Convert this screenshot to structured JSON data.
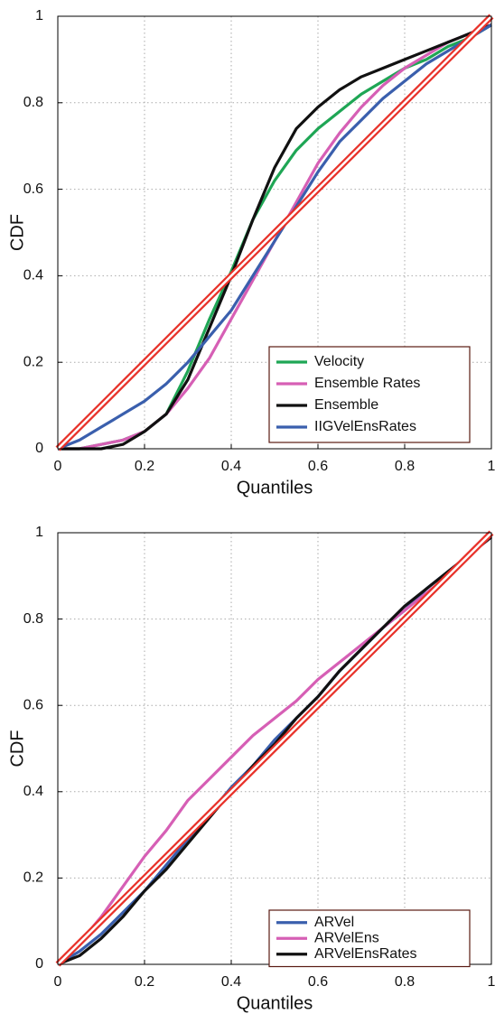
{
  "chart_data": [
    {
      "type": "line",
      "xlabel": "Quantiles",
      "ylabel": "CDF",
      "xlim": [
        0,
        1
      ],
      "ylim": [
        0,
        1
      ],
      "xticks": [
        0,
        0.2,
        0.4,
        0.6,
        0.8,
        1
      ],
      "yticks": [
        0,
        0.2,
        0.4,
        0.6,
        0.8,
        1
      ],
      "grid": true,
      "legend": "lower right",
      "x": [
        0,
        0.05,
        0.1,
        0.15,
        0.2,
        0.25,
        0.3,
        0.35,
        0.4,
        0.45,
        0.5,
        0.55,
        0.6,
        0.65,
        0.7,
        0.75,
        0.8,
        0.85,
        0.9,
        0.95,
        1
      ],
      "reference": {
        "x": [
          0,
          1
        ],
        "values": [
          0,
          1
        ],
        "color": "#e8322a"
      },
      "series": [
        {
          "name": "Velocity",
          "color": "#1fa655",
          "values": [
            0,
            0,
            0.01,
            0.02,
            0.04,
            0.08,
            0.18,
            0.3,
            0.41,
            0.53,
            0.62,
            0.69,
            0.74,
            0.78,
            0.82,
            0.85,
            0.88,
            0.9,
            0.93,
            0.95,
            0.98
          ]
        },
        {
          "name": "Ensemble Rates",
          "color": "#d65fb5",
          "values": [
            0,
            0,
            0.01,
            0.02,
            0.04,
            0.08,
            0.14,
            0.21,
            0.3,
            0.39,
            0.48,
            0.57,
            0.66,
            0.73,
            0.79,
            0.84,
            0.88,
            0.91,
            0.94,
            0.96,
            0.98
          ]
        },
        {
          "name": "Ensemble",
          "color": "#111111",
          "values": [
            0,
            0,
            0,
            0.01,
            0.04,
            0.08,
            0.16,
            0.28,
            0.4,
            0.53,
            0.65,
            0.74,
            0.79,
            0.83,
            0.86,
            0.88,
            0.9,
            0.92,
            0.94,
            0.96,
            0.98
          ]
        },
        {
          "name": "IIGVelEnsRates",
          "color": "#3a5fad",
          "values": [
            0,
            0.02,
            0.05,
            0.08,
            0.11,
            0.15,
            0.2,
            0.26,
            0.32,
            0.4,
            0.48,
            0.56,
            0.64,
            0.71,
            0.76,
            0.81,
            0.85,
            0.89,
            0.92,
            0.95,
            0.98
          ]
        }
      ]
    },
    {
      "type": "line",
      "xlabel": "Quantiles",
      "ylabel": "CDF",
      "xlim": [
        0,
        1
      ],
      "ylim": [
        0,
        1
      ],
      "xticks": [
        0,
        0.2,
        0.4,
        0.6,
        0.8,
        1
      ],
      "yticks": [
        0,
        0.2,
        0.4,
        0.6,
        0.8,
        1
      ],
      "grid": true,
      "legend": "lower right",
      "x": [
        0,
        0.05,
        0.1,
        0.15,
        0.2,
        0.25,
        0.3,
        0.35,
        0.4,
        0.45,
        0.5,
        0.55,
        0.6,
        0.65,
        0.7,
        0.75,
        0.8,
        0.85,
        0.9,
        0.95,
        1
      ],
      "reference": {
        "x": [
          0,
          1
        ],
        "values": [
          0,
          1
        ],
        "color": "#e8322a"
      },
      "series": [
        {
          "name": "ARVel",
          "color": "#3a5fad",
          "values": [
            0,
            0.03,
            0.07,
            0.12,
            0.17,
            0.23,
            0.29,
            0.35,
            0.41,
            0.46,
            0.52,
            0.57,
            0.62,
            0.68,
            0.73,
            0.78,
            0.82,
            0.87,
            0.91,
            0.95,
            0.99
          ]
        },
        {
          "name": "ARVelEns",
          "color": "#d65fb5",
          "values": [
            0,
            0.05,
            0.11,
            0.18,
            0.25,
            0.31,
            0.38,
            0.43,
            0.48,
            0.53,
            0.57,
            0.61,
            0.66,
            0.7,
            0.74,
            0.78,
            0.82,
            0.86,
            0.9,
            0.95,
            0.99
          ]
        },
        {
          "name": "ARVelEnsRates",
          "color": "#111111",
          "values": [
            0,
            0.02,
            0.06,
            0.11,
            0.17,
            0.22,
            0.28,
            0.34,
            0.4,
            0.46,
            0.51,
            0.57,
            0.62,
            0.68,
            0.73,
            0.78,
            0.83,
            0.87,
            0.91,
            0.95,
            0.99
          ]
        }
      ]
    }
  ]
}
